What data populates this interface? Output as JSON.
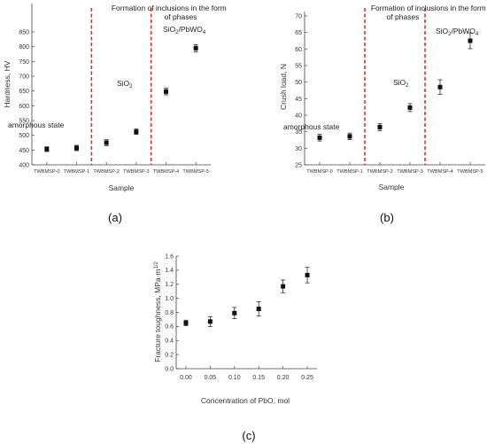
{
  "chart_data": [
    {
      "type": "scatter",
      "panel_label": "(a)",
      "xlabel": "Sample",
      "ylabel": "Hardness, HV",
      "categories": [
        "TWBMSP-0",
        "TWBMSP-1",
        "TWBMSP-2",
        "TWBMSP-3",
        "TWBMSP-4",
        "TWBMSP-5"
      ],
      "values": [
        453,
        457,
        475,
        512,
        648,
        795
      ],
      "errors": [
        8,
        9,
        10,
        9,
        11,
        12
      ],
      "ylim": [
        400,
        850
      ],
      "yticks": [
        400,
        450,
        500,
        550,
        600,
        650,
        700,
        750,
        800,
        850
      ],
      "grid": false,
      "dividers_after_index": [
        1.5,
        3.5
      ],
      "annotations": {
        "top": "Formation of inclusions in the form of phases",
        "left_region": "amorphous state",
        "middle_region": "SiO",
        "middle_region_sub": "2",
        "right_region": "SiO",
        "right_region_sub": "2",
        "right_region_rest": "/PbWO",
        "right_region_sub2": "4"
      },
      "colors": {
        "marker": "#111111",
        "divider": "#d9342b"
      }
    },
    {
      "type": "scatter",
      "panel_label": "(b)",
      "xlabel": "Sample",
      "ylabel": "Crush load, N",
      "categories": [
        "TWBMSP-0",
        "TWBMSP-1",
        "TWBMSP-2",
        "TWBMSP-3",
        "TWBMSP-4",
        "TWBMSP-5"
      ],
      "values": [
        33.2,
        33.6,
        36.4,
        42.3,
        48.5,
        62.5
      ],
      "errors": [
        1.0,
        1.0,
        1.1,
        1.2,
        2.2,
        2.4
      ],
      "ylim": [
        25,
        70
      ],
      "yticks": [
        25,
        30,
        35,
        40,
        45,
        50,
        55,
        60,
        65,
        70
      ],
      "grid": false,
      "dividers_after_index": [
        1.5,
        3.5
      ],
      "annotations": {
        "top": "Formation of inclusions in the form of phases",
        "left_region": "amorphous state",
        "middle_region": "SiO",
        "middle_region_sub": "2",
        "right_region": "SiO",
        "right_region_sub": "2",
        "right_region_rest": "/PbWO",
        "right_region_sub2": "4"
      },
      "colors": {
        "marker": "#111111",
        "divider": "#d9342b"
      }
    },
    {
      "type": "scatter",
      "panel_label": "(c)",
      "xlabel": "Concentration of PbO, mol",
      "ylabel": "Fracture toughness, MPa·m",
      "ylabel_sup": "1/2",
      "x": [
        0.0,
        0.05,
        0.1,
        0.15,
        0.2,
        0.25
      ],
      "xticks": [
        "0.00",
        "0.05",
        "0.10",
        "0.15",
        "0.20",
        "0.25"
      ],
      "y": [
        0.65,
        0.67,
        0.79,
        0.85,
        1.17,
        1.33
      ],
      "errors": [
        0.04,
        0.07,
        0.08,
        0.1,
        0.09,
        0.11
      ],
      "ylim": [
        0.0,
        1.6
      ],
      "yticks": [
        "0.0",
        "0.2",
        "0.4",
        "0.6",
        "0.8",
        "1.0",
        "1.2",
        "1.4",
        "1.6"
      ],
      "grid": false,
      "colors": {
        "marker": "#111111"
      }
    }
  ]
}
